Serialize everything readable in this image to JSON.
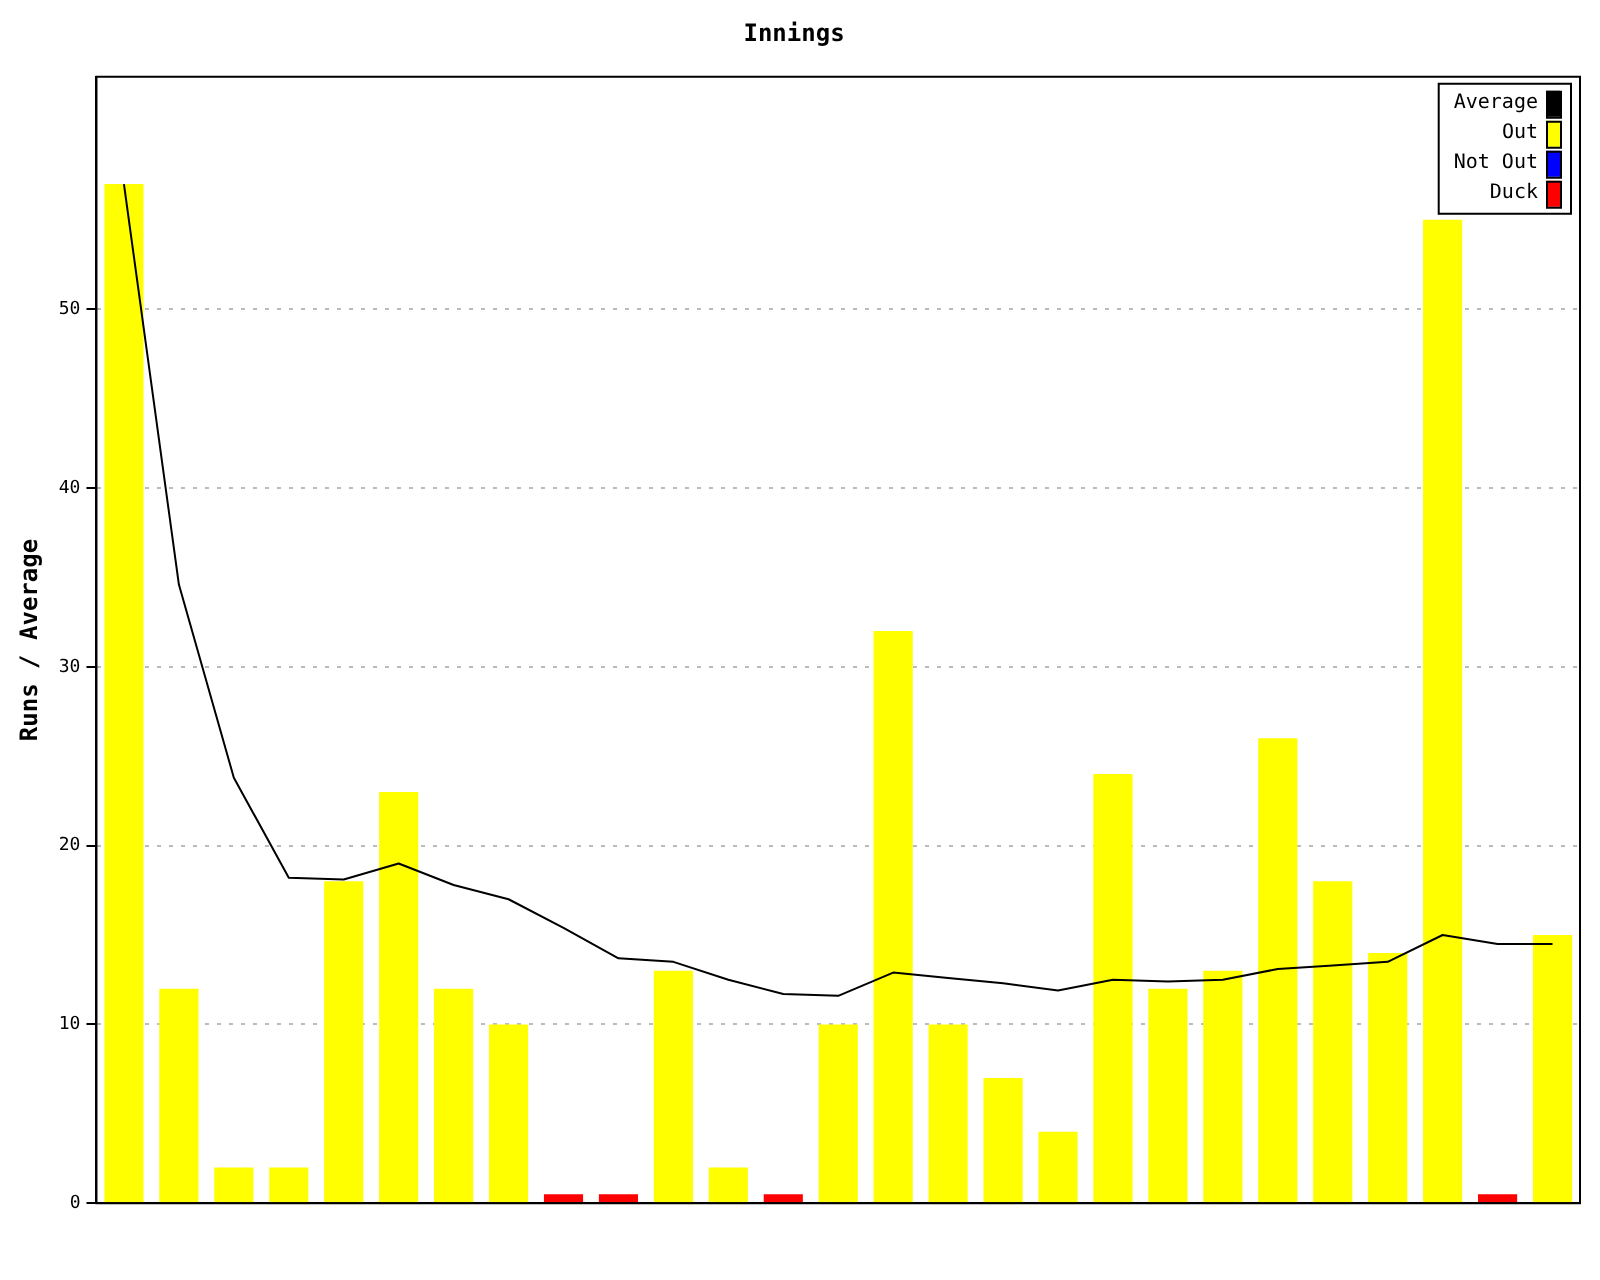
{
  "chart_data": {
    "type": "bar",
    "title": "Innings",
    "ylabel": "Runs / Average",
    "categories": [
      null,
      null,
      null,
      null,
      null,
      null,
      null,
      null,
      null,
      null,
      null,
      null,
      null,
      null,
      null,
      null,
      null,
      null,
      null,
      null,
      null,
      null,
      null,
      null,
      null,
      null,
      null
    ],
    "series": [
      {
        "name": "Average",
        "type": "line",
        "color": "#000000",
        "values": [
          57,
          34.6,
          23.8,
          18.2,
          18.1,
          19.0,
          17.8,
          17.0,
          15.4,
          13.7,
          13.5,
          12.5,
          11.7,
          11.6,
          12.9,
          12.6,
          12.3,
          11.9,
          12.5,
          12.4,
          12.5,
          13.1,
          13.3,
          13.5,
          15.0,
          14.5,
          14.5
        ]
      },
      {
        "name": "Out",
        "color": "#ffff00",
        "values": [
          57,
          12,
          2,
          2,
          18,
          23,
          12,
          10,
          null,
          null,
          13,
          2,
          null,
          10,
          32,
          10,
          7,
          4,
          24,
          12,
          13,
          26,
          18,
          14,
          55,
          null,
          15
        ]
      },
      {
        "name": "Not Out",
        "color": "#0000ff",
        "values": [
          null,
          null,
          null,
          null,
          null,
          null,
          null,
          null,
          null,
          null,
          null,
          null,
          null,
          null,
          null,
          null,
          null,
          null,
          null,
          null,
          null,
          null,
          null,
          null,
          null,
          null,
          null
        ]
      },
      {
        "name": "Duck",
        "color": "#ff0000",
        "values": [
          null,
          null,
          null,
          null,
          null,
          null,
          null,
          null,
          0.5,
          0.5,
          null,
          null,
          0.5,
          null,
          null,
          null,
          null,
          null,
          null,
          null,
          null,
          null,
          null,
          null,
          null,
          0.5,
          null
        ]
      }
    ],
    "stacked": true,
    "ylim": [
      0,
      63
    ],
    "yticks": [
      0,
      10,
      20,
      30,
      40,
      50
    ],
    "grid": "y",
    "legend": "top right",
    "marker": "none"
  }
}
